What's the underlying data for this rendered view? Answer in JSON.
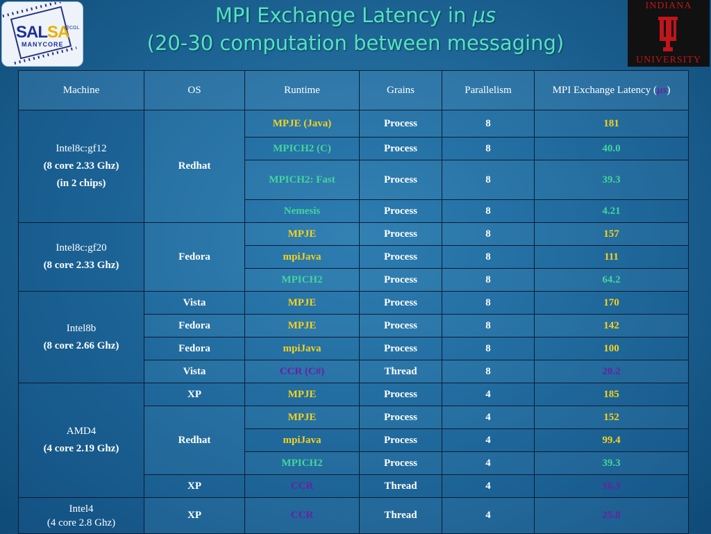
{
  "title_line1": "MPI Exchange Latency in ",
  "title_unit": "µs",
  "title_line2": "(20-30 computation between messaging)",
  "logos": {
    "left_word_part1": "SAL",
    "left_word_part2": "SA",
    "left_sub": "MANYCORE",
    "left_tag": "@CGL",
    "right_top": "INDIANA",
    "right_bottom": "UNIVERSITY"
  },
  "colors": {
    "yellow": "#f7d21a",
    "green": "#43d69b",
    "purple": "#6b1ea8",
    "title": "#53e3c2"
  },
  "headers": {
    "machine": "Machine",
    "os": "OS",
    "runtime": "Runtime",
    "grains": "Grains",
    "parallelism": "Parallelism",
    "latency_prefix": "MPI Exchange Latency (",
    "latency_unit": "µs",
    "latency_suffix": ")"
  },
  "machines": {
    "m1": {
      "name": "Intel8c:gf12",
      "spec": "(8 core 2.33 Ghz)",
      "extra": "(in 2 chips)"
    },
    "m2": {
      "name": "Intel8c:gf20",
      "spec": "(8 core 2.33 Ghz)"
    },
    "m3": {
      "name": "Intel8b",
      "spec": "(8 core 2.66 Ghz)"
    },
    "m4": {
      "name": "AMD4",
      "spec": "(4 core 2.19 Ghz)"
    },
    "m5": {
      "name": "Intel4",
      "spec": "(4 core 2.8 Ghz)"
    }
  },
  "os": {
    "o1": "Redhat",
    "o2": "Fedora",
    "o3": "Vista",
    "o4": "Fedora",
    "o5": "Fedora",
    "o6": "Vista",
    "o7": "XP",
    "o8": "Redhat",
    "o9": "XP",
    "o10": "XP"
  },
  "rows": [
    {
      "runtime": "MPJE (Java)",
      "grains": "Process",
      "parallelism": "8",
      "latency": "181",
      "color": "yellow"
    },
    {
      "runtime": "MPICH2 (C)",
      "grains": "Process",
      "parallelism": "8",
      "latency": "40.0",
      "color": "green"
    },
    {
      "runtime": "MPICH2: Fast",
      "grains": "Process",
      "parallelism": "8",
      "latency": "39.3",
      "color": "green"
    },
    {
      "runtime": "Nemesis",
      "grains": "Process",
      "parallelism": "8",
      "latency": "4.21",
      "color": "green"
    },
    {
      "runtime": "MPJE",
      "grains": "Process",
      "parallelism": "8",
      "latency": "157",
      "color": "yellow"
    },
    {
      "runtime": "mpiJava",
      "grains": "Process",
      "parallelism": "8",
      "latency": "111",
      "color": "yellow"
    },
    {
      "runtime": "MPICH2",
      "grains": "Process",
      "parallelism": "8",
      "latency": "64.2",
      "color": "green"
    },
    {
      "runtime": "MPJE",
      "grains": "Process",
      "parallelism": "8",
      "latency": "170",
      "color": "yellow"
    },
    {
      "runtime": "MPJE",
      "grains": "Process",
      "parallelism": "8",
      "latency": "142",
      "color": "yellow"
    },
    {
      "runtime": "mpiJava",
      "grains": "Process",
      "parallelism": "8",
      "latency": "100",
      "color": "yellow"
    },
    {
      "runtime": "CCR (C#)",
      "grains": "Thread",
      "parallelism": "8",
      "latency": "20.2",
      "color": "purple"
    },
    {
      "runtime": "MPJE",
      "grains": "Process",
      "parallelism": "4",
      "latency": "185",
      "color": "yellow"
    },
    {
      "runtime": "MPJE",
      "grains": "Process",
      "parallelism": "4",
      "latency": "152",
      "color": "yellow"
    },
    {
      "runtime": "mpiJava",
      "grains": "Process",
      "parallelism": "4",
      "latency": "99.4",
      "color": "yellow"
    },
    {
      "runtime": "MPICH2",
      "grains": "Process",
      "parallelism": "4",
      "latency": "39.3",
      "color": "green"
    },
    {
      "runtime": "CCR",
      "grains": "Thread",
      "parallelism": "4",
      "latency": "16.3",
      "color": "purple"
    },
    {
      "runtime": "CCR",
      "grains": "Thread",
      "parallelism": "4",
      "latency": "25.8",
      "color": "purple"
    }
  ]
}
